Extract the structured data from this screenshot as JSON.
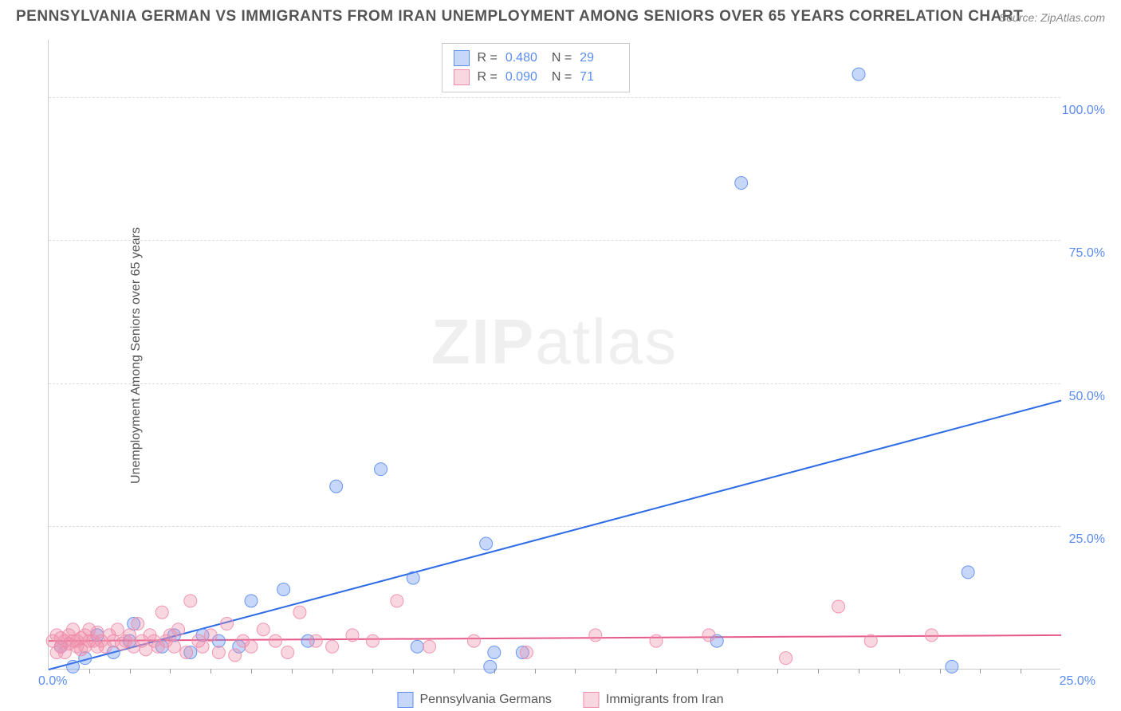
{
  "title": "PENNSYLVANIA GERMAN VS IMMIGRANTS FROM IRAN UNEMPLOYMENT AMONG SENIORS OVER 65 YEARS CORRELATION CHART",
  "source": "Source: ZipAtlas.com",
  "ylabel": "Unemployment Among Seniors over 65 years",
  "watermark_a": "ZIP",
  "watermark_b": "atlas",
  "chart": {
    "type": "scatter",
    "xlim": [
      0,
      25
    ],
    "ylim": [
      0,
      110
    ],
    "background_color": "#ffffff",
    "grid_color": "#dddddd",
    "axis_color": "#cccccc",
    "tick_label_color": "#5b8def",
    "tick_label_fontsize": 16,
    "ylabel_fontsize": 16,
    "title_color": "#555555",
    "title_fontsize": 19,
    "marker_radius": 8,
    "marker_opacity": 0.45,
    "marker_stroke_opacity": 0.9,
    "yticks": [
      {
        "v": 25,
        "label": "25.0%"
      },
      {
        "v": 50,
        "label": "50.0%"
      },
      {
        "v": 75,
        "label": "75.0%"
      },
      {
        "v": 100,
        "label": "100.0%"
      }
    ],
    "xticks_origin": "0.0%",
    "xticks_end": "25.0%",
    "xtick_step": 1,
    "series": [
      {
        "key": "pa_german",
        "label": "Pennsylvania Germans",
        "color_fill": "rgba(91,141,239,0.35)",
        "color_stroke": "#5b8def",
        "r": "0.480",
        "n": "29",
        "regression": {
          "x1": 0,
          "y1": 0,
          "x2": 25,
          "y2": 47
        },
        "line_color": "#2e6be6",
        "line_width": 2,
        "points": [
          [
            0.3,
            4
          ],
          [
            0.6,
            0.5
          ],
          [
            0.9,
            2
          ],
          [
            1.2,
            6
          ],
          [
            1.6,
            3
          ],
          [
            2.0,
            5
          ],
          [
            2.1,
            8
          ],
          [
            2.8,
            4
          ],
          [
            3.1,
            6
          ],
          [
            3.5,
            3
          ],
          [
            3.8,
            6
          ],
          [
            4.2,
            5
          ],
          [
            4.7,
            4
          ],
          [
            5.0,
            12
          ],
          [
            5.8,
            14
          ],
          [
            6.4,
            5
          ],
          [
            7.1,
            32
          ],
          [
            8.2,
            35
          ],
          [
            9.0,
            16
          ],
          [
            9.1,
            4
          ],
          [
            10.8,
            22
          ],
          [
            10.9,
            0.5
          ],
          [
            11.0,
            3
          ],
          [
            11.7,
            3
          ],
          [
            16.5,
            5
          ],
          [
            17.1,
            85
          ],
          [
            20.0,
            104
          ],
          [
            22.3,
            0.5
          ],
          [
            22.7,
            17
          ]
        ]
      },
      {
        "key": "iran",
        "label": "Immigrants from Iran",
        "color_fill": "rgba(239,140,170,0.35)",
        "color_stroke": "#ef8caa",
        "r": "0.090",
        "n": "71",
        "regression": {
          "x1": 0,
          "y1": 5,
          "x2": 25,
          "y2": 6
        },
        "line_color": "#e65a8a",
        "line_width": 2,
        "points": [
          [
            0.1,
            5
          ],
          [
            0.2,
            3
          ],
          [
            0.2,
            6
          ],
          [
            0.3,
            4
          ],
          [
            0.3,
            5.5
          ],
          [
            0.4,
            5
          ],
          [
            0.4,
            3
          ],
          [
            0.5,
            6
          ],
          [
            0.5,
            4.5
          ],
          [
            0.6,
            5
          ],
          [
            0.6,
            7
          ],
          [
            0.7,
            4
          ],
          [
            0.7,
            5
          ],
          [
            0.8,
            5.5
          ],
          [
            0.8,
            3.5
          ],
          [
            0.9,
            6
          ],
          [
            0.9,
            4
          ],
          [
            1.0,
            5
          ],
          [
            1.0,
            7
          ],
          [
            1.1,
            5
          ],
          [
            1.2,
            4
          ],
          [
            1.2,
            6.5
          ],
          [
            1.3,
            5
          ],
          [
            1.4,
            4
          ],
          [
            1.5,
            6
          ],
          [
            1.6,
            5
          ],
          [
            1.7,
            7
          ],
          [
            1.8,
            4.5
          ],
          [
            1.9,
            5
          ],
          [
            2.0,
            6
          ],
          [
            2.1,
            4
          ],
          [
            2.2,
            8
          ],
          [
            2.3,
            5
          ],
          [
            2.4,
            3.5
          ],
          [
            2.5,
            6
          ],
          [
            2.6,
            5
          ],
          [
            2.7,
            4
          ],
          [
            2.8,
            10
          ],
          [
            2.9,
            5
          ],
          [
            3.0,
            6
          ],
          [
            3.1,
            4
          ],
          [
            3.2,
            7
          ],
          [
            3.4,
            3
          ],
          [
            3.5,
            12
          ],
          [
            3.7,
            5
          ],
          [
            3.8,
            4
          ],
          [
            4.0,
            6
          ],
          [
            4.2,
            3
          ],
          [
            4.4,
            8
          ],
          [
            4.6,
            2.5
          ],
          [
            4.8,
            5
          ],
          [
            5.0,
            4
          ],
          [
            5.3,
            7
          ],
          [
            5.6,
            5
          ],
          [
            5.9,
            3
          ],
          [
            6.2,
            10
          ],
          [
            6.6,
            5
          ],
          [
            7.0,
            4
          ],
          [
            7.5,
            6
          ],
          [
            8.0,
            5
          ],
          [
            8.6,
            12
          ],
          [
            9.4,
            4
          ],
          [
            10.5,
            5
          ],
          [
            11.8,
            3
          ],
          [
            13.5,
            6
          ],
          [
            15.0,
            5
          ],
          [
            16.3,
            6
          ],
          [
            18.2,
            2
          ],
          [
            19.5,
            11
          ],
          [
            20.3,
            5
          ],
          [
            21.8,
            6
          ]
        ]
      }
    ]
  },
  "legend_top": {
    "r_label": "R =",
    "n_label": "N ="
  }
}
